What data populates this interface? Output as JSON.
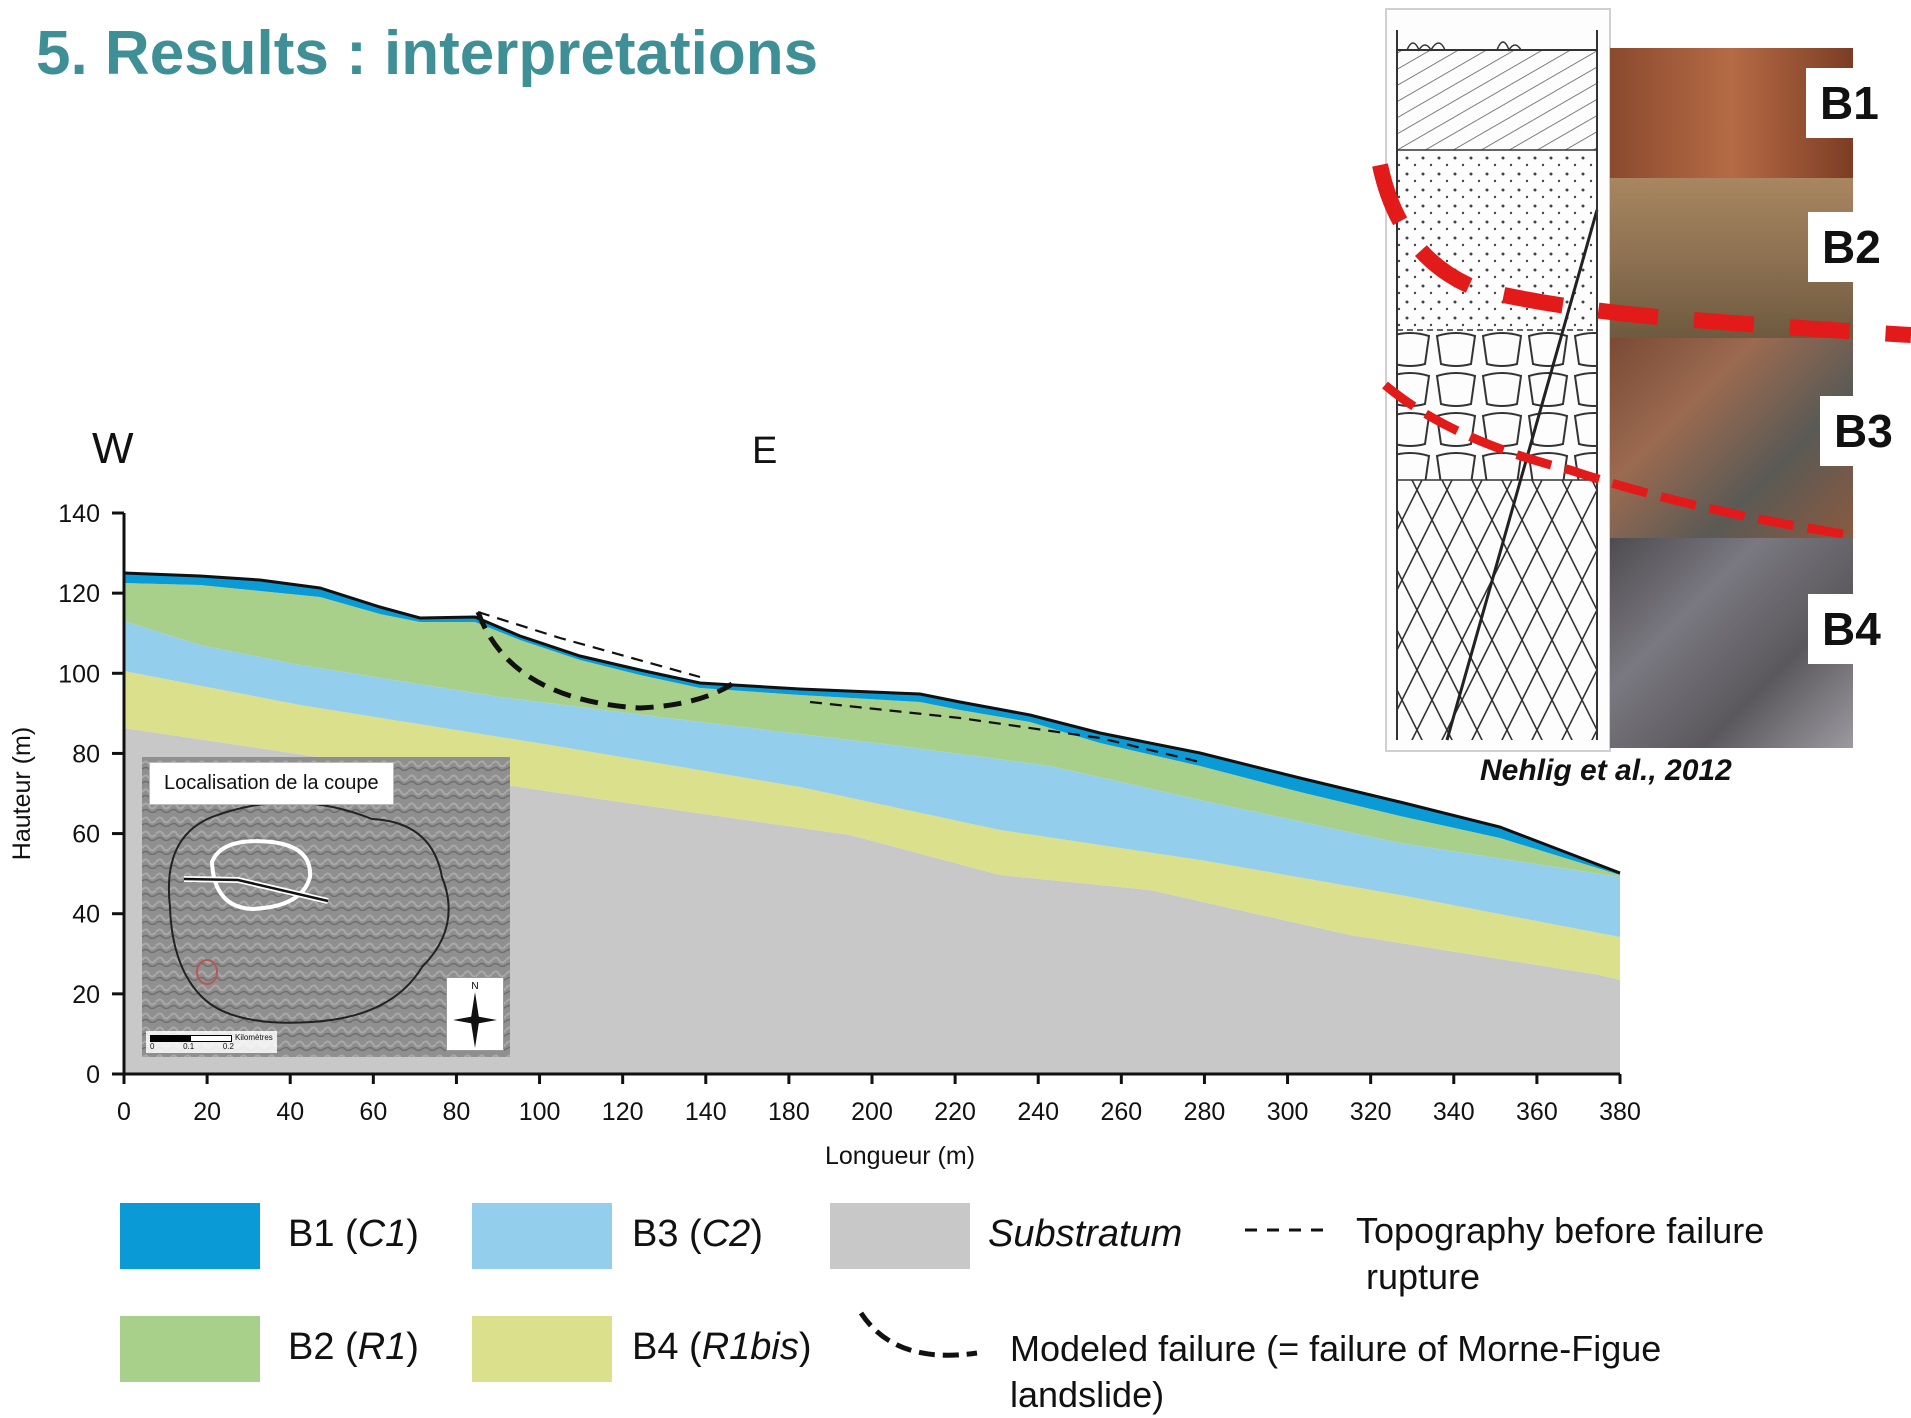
{
  "title": "5. Results : interpretations",
  "profile": {
    "west_label": "W",
    "east_label": "E",
    "y_axis_title": "Hauteur (m)",
    "x_axis_title": "Longueur (m)",
    "y_ticks": [
      "0",
      "20",
      "40",
      "60",
      "80",
      "100",
      "120",
      "140"
    ],
    "x_ticks": [
      "0",
      "20",
      "40",
      "60",
      "80",
      "100",
      "120",
      "140",
      "180",
      "200",
      "220",
      "240",
      "260",
      "280",
      "300",
      "320",
      "340",
      "360",
      "380"
    ],
    "colors": {
      "B1": "#0a9ad6",
      "B2": "#a9d08a",
      "B3": "#93cfec",
      "B4": "#dbe08d",
      "Substratum": "#c8c8c8"
    }
  },
  "inset": {
    "caption": "Localisation de la coupe",
    "compass_label": "N",
    "scale_unit": "Kilomètres",
    "scale_ticks": [
      "0",
      "0.1",
      "0.2"
    ]
  },
  "stratigraphy": {
    "layers": [
      "B1",
      "B2",
      "B3",
      "B4"
    ],
    "citation": "Nehlig et al., 2012"
  },
  "legend": {
    "b1_name": "B1 (",
    "b1_code": "C1",
    "b2_name": "B2 (",
    "b2_code": "R1",
    "b3_name": "B3 (",
    "b3_code": "C2",
    "b4_name": "B4 (",
    "b4_code": "R1bis",
    "close_paren": ")",
    "substratum": "Substratum",
    "topography_line1": "Topography before failure",
    "topography_line2": "rupture",
    "modeled_line1": "Modeled failure (= failure of Morne-Figue",
    "modeled_line2": "landslide)"
  }
}
